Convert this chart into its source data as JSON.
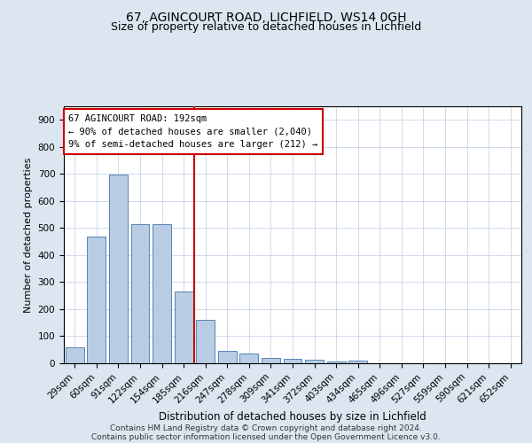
{
  "title1": "67, AGINCOURT ROAD, LICHFIELD, WS14 0GH",
  "title2": "Size of property relative to detached houses in Lichfield",
  "xlabel": "Distribution of detached houses by size in Lichfield",
  "ylabel": "Number of detached properties",
  "categories": [
    "29sqm",
    "60sqm",
    "91sqm",
    "122sqm",
    "154sqm",
    "185sqm",
    "216sqm",
    "247sqm",
    "278sqm",
    "309sqm",
    "341sqm",
    "372sqm",
    "403sqm",
    "434sqm",
    "465sqm",
    "496sqm",
    "527sqm",
    "559sqm",
    "590sqm",
    "621sqm",
    "652sqm"
  ],
  "values": [
    60,
    467,
    697,
    513,
    513,
    265,
    160,
    47,
    35,
    20,
    15,
    12,
    7,
    10,
    0,
    0,
    0,
    0,
    0,
    0,
    0
  ],
  "bar_color": "#b8cce4",
  "bar_edge_color": "#5585b5",
  "vline_x_index": 6,
  "vline_color": "#cc0000",
  "annotation_line1": "67 AGINCOURT ROAD: 192sqm",
  "annotation_line2": "← 90% of detached houses are smaller (2,040)",
  "annotation_line3": "9% of semi-detached houses are larger (212) →",
  "annotation_box_color": "#cc0000",
  "annotation_text_color": "#000000",
  "ylim": [
    0,
    950
  ],
  "yticks": [
    0,
    100,
    200,
    300,
    400,
    500,
    600,
    700,
    800,
    900
  ],
  "footer1": "Contains HM Land Registry data © Crown copyright and database right 2024.",
  "footer2": "Contains public sector information licensed under the Open Government Licence v3.0.",
  "background_color": "#dce6f0",
  "plot_background_color": "#ffffff",
  "grid_color": "#c8d4e8",
  "title1_fontsize": 10,
  "title2_fontsize": 9,
  "xlabel_fontsize": 8.5,
  "ylabel_fontsize": 8,
  "tick_fontsize": 7.5,
  "annotation_fontsize": 7.5,
  "footer_fontsize": 6.5
}
